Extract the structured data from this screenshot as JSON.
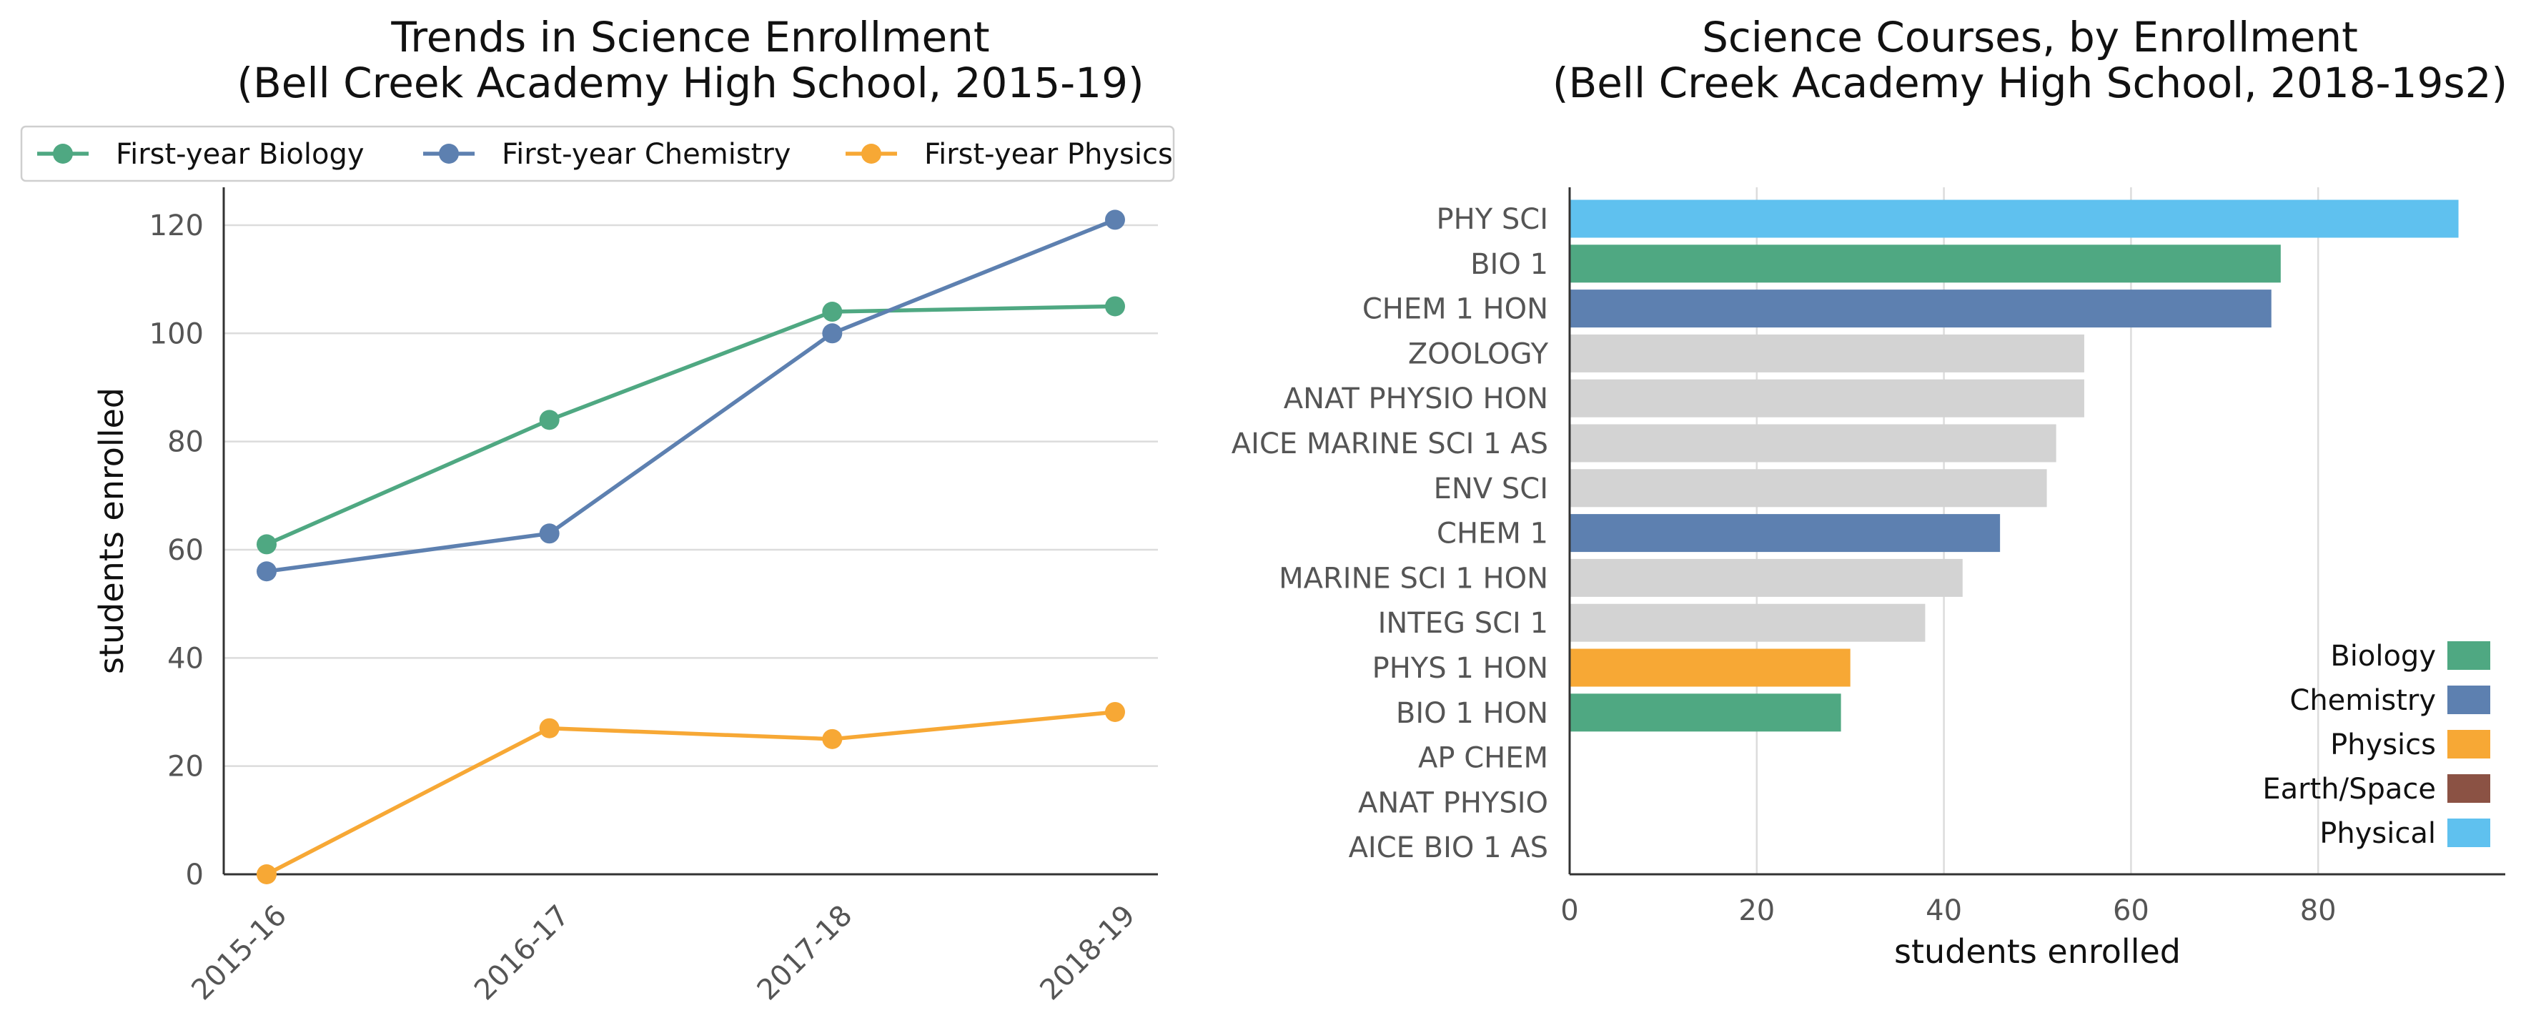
{
  "chart_data": [
    {
      "type": "line",
      "title": "Trends in Science Enrollment\n(Bell Creek Academy High School, 2015-19)",
      "xlabel": "",
      "ylabel": "students enrolled",
      "categories": [
        "2015-16",
        "2016-17",
        "2017-18",
        "2018-19"
      ],
      "ylim": [
        0,
        127
      ],
      "yticks": [
        0,
        20,
        40,
        60,
        80,
        100,
        120
      ],
      "grid": "horizontal",
      "legend_position": "top",
      "series": [
        {
          "name": "First-year Biology",
          "color": "#4fa882",
          "values": [
            61,
            84,
            104,
            105
          ]
        },
        {
          "name": "First-year Chemistry",
          "color": "#5d80b0",
          "values": [
            56,
            63,
            100,
            121
          ]
        },
        {
          "name": "First-year Physics",
          "color": "#f7a835",
          "values": [
            0,
            27,
            25,
            30
          ]
        }
      ]
    },
    {
      "type": "bar",
      "orientation": "horizontal",
      "title": "Science Courses, by Enrollment\n(Bell Creek Academy High School, 2018-19s2)",
      "xlabel": "students enrolled",
      "ylabel": "",
      "xlim": [
        0,
        100
      ],
      "xticks": [
        0,
        20,
        40,
        60,
        80
      ],
      "grid": "vertical",
      "legend_position": "bottom-right",
      "categories": [
        "PHY SCI",
        "BIO 1",
        "CHEM 1 HON",
        "ZOOLOGY",
        "ANAT PHYSIO HON",
        "AICE MARINE SCI 1 AS",
        "ENV SCI",
        "CHEM 1",
        "MARINE SCI 1 HON",
        "INTEG SCI 1",
        "PHYS 1 HON",
        "BIO 1 HON",
        "AP CHEM",
        "ANAT PHYSIO",
        "AICE BIO 1 AS"
      ],
      "values": [
        95,
        76,
        75,
        55,
        55,
        52,
        51,
        46,
        42,
        38,
        30,
        29,
        0,
        0,
        0
      ],
      "bar_colors": [
        "#5fc1ef",
        "#4fa882",
        "#5d80b0",
        "#d3d3d3",
        "#d3d3d3",
        "#d3d3d3",
        "#d3d3d3",
        "#5d80b0",
        "#d3d3d3",
        "#d3d3d3",
        "#f7a835",
        "#4fa882",
        "#d3d3d3",
        "#d3d3d3",
        "#d3d3d3"
      ],
      "legend": [
        {
          "name": "Biology",
          "color": "#4fa882"
        },
        {
          "name": "Chemistry",
          "color": "#5d80b0"
        },
        {
          "name": "Physics",
          "color": "#f7a835"
        },
        {
          "name": "Earth/Space",
          "color": "#8b5244"
        },
        {
          "name": "Physical",
          "color": "#5fc1ef"
        }
      ]
    }
  ]
}
